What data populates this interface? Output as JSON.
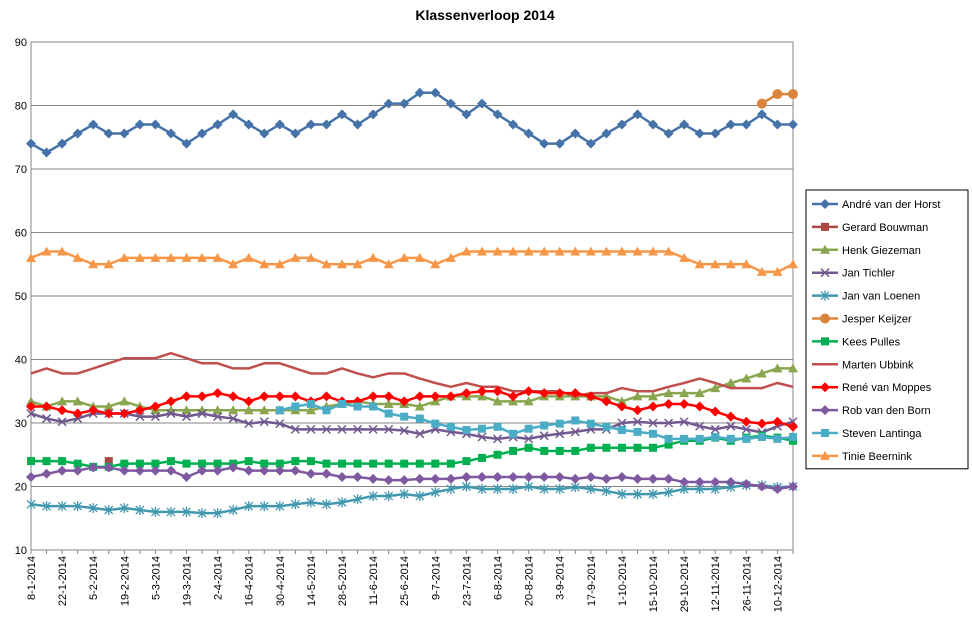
{
  "chart_data": {
    "type": "line",
    "title": "Klassenverloop 2014",
    "categories": [
      "8-1-2014",
      null,
      "22-1-2014",
      null,
      "5-2-2014",
      null,
      "19-2-2014",
      null,
      "5-3-2014",
      null,
      "19-3-2014",
      null,
      "2-4-2014",
      null,
      "16-4-2014",
      null,
      "30-4-2014",
      null,
      "14-5-2014",
      null,
      "28-5-2014",
      null,
      "11-6-2014",
      null,
      "25-6-2014",
      null,
      "9-7-2014",
      null,
      "23-7-2014",
      null,
      "6-8-2014",
      null,
      "20-8-2014",
      null,
      "3-9-2014",
      null,
      "17-9-2014",
      null,
      "1-10-2014",
      null,
      "15-10-2014",
      null,
      "29-10-2014",
      null,
      "12-11-2014",
      null,
      "26-11-2014",
      null,
      "10-12-2014",
      null
    ],
    "ylim": [
      10,
      90
    ],
    "yticks": [
      10,
      20,
      30,
      40,
      50,
      60,
      70,
      80,
      90
    ],
    "grid": true,
    "legend": "right",
    "series": [
      {
        "name": "André van der Horst",
        "color": "#4572a7",
        "marker": "diamond",
        "values": [
          74,
          72.6,
          74,
          75.6,
          77,
          75.6,
          75.6,
          77,
          77,
          75.6,
          74,
          75.6,
          77,
          78.6,
          77,
          75.6,
          77,
          75.6,
          77,
          77,
          78.6,
          77,
          78.6,
          80.3,
          80.3,
          82,
          82,
          80.3,
          78.6,
          80.3,
          78.6,
          77,
          75.6,
          74,
          74,
          75.6,
          74,
          75.6,
          77,
          78.6,
          77,
          75.6,
          77,
          75.6,
          75.6,
          77,
          77,
          78.6,
          77,
          77
        ]
      },
      {
        "name": "Gerard Bouwman",
        "color": "#aa4643",
        "marker": "square",
        "values": [
          null,
          null,
          null,
          null,
          null,
          24,
          null,
          null,
          null,
          null,
          null,
          null,
          null,
          null,
          null,
          null,
          null,
          null,
          null,
          null,
          null,
          null,
          null,
          null,
          null,
          null,
          null,
          null,
          null,
          null,
          null,
          null,
          null,
          null,
          null,
          null,
          null,
          null,
          null,
          null,
          null,
          null,
          null,
          null,
          null,
          null,
          null,
          null,
          null,
          null
        ]
      },
      {
        "name": "Henk Giezeman",
        "color": "#89a54e",
        "marker": "triangle",
        "values": [
          33.4,
          32.6,
          33.4,
          33.4,
          32.6,
          32.6,
          33.4,
          32.6,
          32,
          32,
          32,
          32,
          32,
          32,
          32,
          32,
          32,
          32,
          32,
          32.6,
          33,
          33.4,
          33,
          33,
          33,
          32.6,
          33.4,
          34.2,
          34.2,
          34.2,
          33.4,
          33.4,
          33.4,
          34.2,
          34.2,
          34.2,
          34.2,
          34.2,
          33.4,
          34.2,
          34.2,
          34.7,
          34.7,
          34.7,
          35.5,
          36.3,
          37,
          37.8,
          38.6,
          38.6
        ]
      },
      {
        "name": "Jan Tichler",
        "color": "#71588f",
        "marker": "x",
        "values": [
          31.5,
          30.7,
          30.2,
          30.7,
          31.5,
          31.5,
          31.5,
          31,
          31,
          31.5,
          31,
          31.5,
          31,
          30.7,
          29.9,
          30.2,
          29.9,
          29,
          29,
          29,
          29,
          29,
          29,
          29,
          28.8,
          28.3,
          29,
          28.6,
          28.3,
          27.8,
          27.5,
          27.8,
          27.5,
          28,
          28.3,
          28.6,
          29,
          29,
          30,
          30.2,
          30,
          30,
          30.2,
          29.5,
          29,
          29.5,
          29,
          28.5,
          29.5,
          30.2
        ]
      },
      {
        "name": "Jan van Loenen",
        "color": "#4198af",
        "marker": "star",
        "values": [
          17.2,
          16.9,
          16.9,
          16.9,
          16.6,
          16.3,
          16.6,
          16.3,
          16,
          16,
          16,
          15.8,
          15.8,
          16.3,
          16.9,
          16.9,
          16.9,
          17.2,
          17.5,
          17.2,
          17.5,
          18,
          18.5,
          18.5,
          18.8,
          18.5,
          19.1,
          19.6,
          20,
          19.6,
          19.6,
          19.6,
          20,
          19.6,
          19.6,
          19.9,
          19.6,
          19.3,
          18.8,
          18.8,
          18.8,
          19.1,
          19.6,
          19.6,
          19.6,
          19.9,
          20.2,
          20.2,
          19.9,
          20
        ]
      },
      {
        "name": "Jesper Keijzer",
        "color": "#db843d",
        "marker": "circle",
        "values": [
          null,
          null,
          null,
          null,
          null,
          null,
          null,
          null,
          null,
          null,
          null,
          null,
          null,
          null,
          null,
          null,
          null,
          null,
          null,
          null,
          null,
          null,
          null,
          null,
          null,
          null,
          null,
          null,
          null,
          null,
          null,
          null,
          null,
          null,
          null,
          null,
          null,
          null,
          null,
          null,
          null,
          null,
          null,
          null,
          null,
          null,
          null,
          80.3,
          81.8,
          81.8
        ]
      },
      {
        "name": "Kees Pulles",
        "color": "#00b050",
        "marker": "square",
        "values": [
          24,
          24,
          24,
          23.6,
          23.1,
          23.1,
          23.6,
          23.6,
          23.6,
          24,
          23.6,
          23.6,
          23.6,
          23.6,
          24,
          23.6,
          23.6,
          24,
          24,
          23.6,
          23.6,
          23.6,
          23.6,
          23.6,
          23.6,
          23.6,
          23.6,
          23.6,
          24,
          24.5,
          25,
          25.6,
          26.1,
          25.6,
          25.6,
          25.6,
          26.1,
          26.1,
          26.1,
          26.1,
          26.1,
          26.6,
          27.2,
          27.2,
          27.7,
          27.2,
          27.7,
          28,
          27.7,
          27.2
        ]
      },
      {
        "name": "Marten Ubbink",
        "color": "#c0504d",
        "marker": "none",
        "values": [
          37.8,
          38.6,
          37.8,
          37.8,
          38.6,
          39.4,
          40.2,
          40.2,
          40.2,
          41,
          40.2,
          39.4,
          39.4,
          38.6,
          38.6,
          39.4,
          39.4,
          38.6,
          37.8,
          37.8,
          38.6,
          37.8,
          37.2,
          37.8,
          37.8,
          37,
          36.3,
          35.7,
          36.3,
          35.7,
          35.7,
          35,
          35,
          35,
          35,
          34.2,
          34.7,
          34.7,
          35.5,
          35,
          35,
          35.7,
          36.3,
          37,
          36.3,
          35.5,
          35.5,
          35.5,
          36.3,
          35.7
        ]
      },
      {
        "name": "René van Moppes",
        "color": "#ff0000",
        "marker": "diamond",
        "values": [
          32.6,
          32.6,
          32,
          31.5,
          32,
          31.5,
          31.5,
          32,
          32.6,
          33.4,
          34.2,
          34.2,
          34.7,
          34.2,
          33.4,
          34.2,
          34.2,
          34.2,
          33.4,
          34.2,
          33.4,
          33.4,
          34.2,
          34.2,
          33.4,
          34.2,
          34.2,
          34.2,
          34.7,
          35,
          35,
          34.2,
          35,
          34.7,
          34.7,
          34.7,
          34.2,
          33.4,
          32.6,
          32,
          32.6,
          33,
          33,
          32.6,
          31.8,
          31,
          30.2,
          29.9,
          30.2,
          29.4
        ]
      },
      {
        "name": "Rob van den Born",
        "color": "#7e59a0",
        "marker": "diamond",
        "values": [
          21.5,
          22,
          22.5,
          22.5,
          23,
          23,
          22.5,
          22.5,
          22.5,
          22.5,
          21.5,
          22.5,
          22.5,
          23,
          22.5,
          22.5,
          22.5,
          22.5,
          22,
          22,
          21.5,
          21.5,
          21.2,
          21,
          21,
          21.2,
          21.2,
          21.2,
          21.5,
          21.5,
          21.5,
          21.5,
          21.5,
          21.5,
          21.5,
          21.2,
          21.5,
          21.2,
          21.5,
          21.2,
          21.2,
          21.2,
          20.7,
          20.7,
          20.7,
          20.7,
          20.4,
          20,
          19.6,
          20
        ]
      },
      {
        "name": "Steven Lantinga",
        "color": "#4bacc6",
        "marker": "square",
        "values": [
          null,
          null,
          null,
          null,
          null,
          null,
          null,
          null,
          null,
          null,
          null,
          null,
          null,
          null,
          null,
          null,
          32,
          32.6,
          33,
          32,
          33,
          32.6,
          32.6,
          31.5,
          31,
          30.7,
          29.9,
          29.4,
          28.9,
          29.1,
          29.4,
          28.3,
          29.1,
          29.6,
          29.9,
          30.4,
          29.9,
          29.4,
          28.9,
          28.6,
          28.3,
          27.5,
          27.5,
          27.5,
          27.8,
          27.5,
          27.5,
          27.8,
          27.5,
          27.8
        ]
      },
      {
        "name": "Tinie Beernink",
        "color": "#f79646",
        "marker": "triangle",
        "values": [
          56,
          57,
          57,
          56,
          55,
          55,
          56,
          56,
          56,
          56,
          56,
          56,
          56,
          55,
          56,
          55,
          55,
          56,
          56,
          55,
          55,
          55,
          56,
          55,
          56,
          56,
          55,
          56,
          57,
          57,
          57,
          57,
          57,
          57,
          57,
          57,
          57,
          57,
          57,
          57,
          57,
          57,
          56,
          55,
          55,
          55,
          55,
          53.8,
          53.8,
          55
        ]
      }
    ]
  }
}
